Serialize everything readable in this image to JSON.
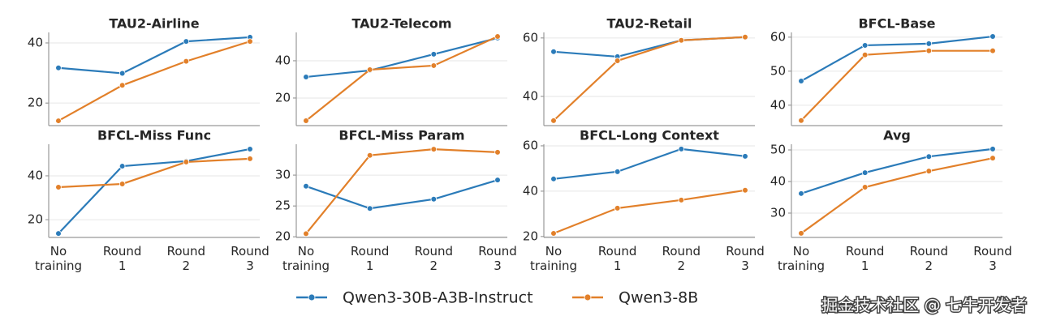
{
  "chart_data": [
    {
      "type": "line",
      "title": "TAU2-Airline",
      "categories": [
        "No training",
        "Round 1",
        "Round 2",
        "Round 3"
      ],
      "ylim": [
        12.5,
        43.5
      ],
      "yticks": [
        20,
        40
      ],
      "grid": true,
      "series": [
        {
          "name": "Qwen3-30B-A3B-Instruct",
          "color": "#2b7bb9",
          "values": [
            31.7,
            29.9,
            40.5,
            41.9
          ]
        },
        {
          "name": "Qwen3-8B",
          "color": "#e2802a",
          "values": [
            14.1,
            25.9,
            33.9,
            40.5
          ]
        }
      ]
    },
    {
      "type": "line",
      "title": "TAU2-Telecom",
      "categories": [
        "No training",
        "Round 1",
        "Round 2",
        "Round 3"
      ],
      "ylim": [
        5.2,
        55.2
      ],
      "yticks": [
        20,
        40
      ],
      "grid": true,
      "series": [
        {
          "name": "Qwen3-30B-A3B-Instruct",
          "color": "#2b7bb9",
          "values": [
            31.3,
            34.8,
            43.5,
            52.2
          ]
        },
        {
          "name": "Qwen3-8B",
          "color": "#e2802a",
          "values": [
            7.8,
            35.2,
            37.4,
            53.0
          ]
        }
      ]
    },
    {
      "type": "line",
      "title": "TAU2-Retail",
      "categories": [
        "No training",
        "Round 1",
        "Round 2",
        "Round 3"
      ],
      "ylim": [
        30,
        61.9
      ],
      "yticks": [
        40,
        60
      ],
      "grid": true,
      "series": [
        {
          "name": "Qwen3-30B-A3B-Instruct",
          "color": "#2b7bb9",
          "values": [
            55.3,
            53.6,
            59.2,
            60.3
          ]
        },
        {
          "name": "Qwen3-8B",
          "color": "#e2802a",
          "values": [
            31.7,
            52.2,
            59.2,
            60.3
          ]
        }
      ]
    },
    {
      "type": "line",
      "title": "BFCL-Base",
      "categories": [
        "No training",
        "Round 1",
        "Round 2",
        "Round 3"
      ],
      "ylim": [
        34,
        61.4
      ],
      "yticks": [
        40,
        50,
        60
      ],
      "grid": true,
      "series": [
        {
          "name": "Qwen3-30B-A3B-Instruct",
          "color": "#2b7bb9",
          "values": [
            47.1,
            57.6,
            58.1,
            60.2
          ]
        },
        {
          "name": "Qwen3-8B",
          "color": "#e2802a",
          "values": [
            35.5,
            54.8,
            56.0,
            56.0
          ]
        }
      ]
    },
    {
      "type": "line",
      "title": "BFCL-Miss Func",
      "categories": [
        "No training",
        "Round 1",
        "Round 2",
        "Round 3"
      ],
      "ylim": [
        11.9,
        54.4
      ],
      "yticks": [
        20,
        40
      ],
      "grid": true,
      "series": [
        {
          "name": "Qwen3-30B-A3B-Instruct",
          "color": "#2b7bb9",
          "values": [
            13.7,
            44.4,
            46.7,
            52.2
          ]
        },
        {
          "name": "Qwen3-8B",
          "color": "#e2802a",
          "values": [
            34.8,
            36.3,
            46.3,
            47.8
          ]
        }
      ]
    },
    {
      "type": "line",
      "title": "BFCL-Miss Param",
      "categories": [
        "No training",
        "Round 1",
        "Round 2",
        "Round 3"
      ],
      "ylim": [
        19.9,
        35.0
      ],
      "yticks": [
        20,
        25,
        30
      ],
      "grid": true,
      "series": [
        {
          "name": "Qwen3-30B-A3B-Instruct",
          "color": "#2b7bb9",
          "values": [
            28.2,
            24.6,
            26.1,
            29.2
          ]
        },
        {
          "name": "Qwen3-8B",
          "color": "#e2802a",
          "values": [
            20.5,
            33.2,
            34.2,
            33.7
          ]
        }
      ]
    },
    {
      "type": "line",
      "title": "BFCL-Long Context",
      "categories": [
        "No training",
        "Round 1",
        "Round 2",
        "Round 3"
      ],
      "ylim": [
        19.6,
        60.7
      ],
      "yticks": [
        20,
        40,
        60
      ],
      "grid": true,
      "series": [
        {
          "name": "Qwen3-30B-A3B-Instruct",
          "color": "#2b7bb9",
          "values": [
            45.4,
            48.6,
            58.6,
            55.4
          ]
        },
        {
          "name": "Qwen3-8B",
          "color": "#e2802a",
          "values": [
            21.4,
            32.5,
            36.1,
            40.4
          ]
        }
      ]
    },
    {
      "type": "line",
      "title": "Avg",
      "categories": [
        "No training",
        "Round 1",
        "Round 2",
        "Round 3"
      ],
      "ylim": [
        22.3,
        51.8
      ],
      "yticks": [
        30,
        40,
        50
      ],
      "grid": true,
      "series": [
        {
          "name": "Qwen3-30B-A3B-Instruct",
          "color": "#2b7bb9",
          "values": [
            36.2,
            42.8,
            47.9,
            50.3
          ]
        },
        {
          "name": "Qwen3-8B",
          "color": "#e2802a",
          "values": [
            23.6,
            38.2,
            43.3,
            47.4
          ]
        }
      ]
    }
  ],
  "watermark": "掘金技术社区 @ 七牛开发者"
}
